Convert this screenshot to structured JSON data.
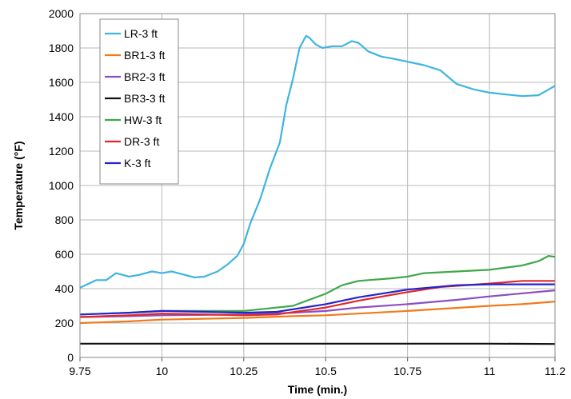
{
  "chart_data": {
    "type": "line",
    "title": "",
    "xlabel": "Time (min.)",
    "ylabel": "Temperature (°F)",
    "xlim": [
      9.75,
      11.2
    ],
    "ylim": [
      0,
      2000
    ],
    "xticks": [
      9.75,
      10,
      10.25,
      10.5,
      10.75,
      11,
      11.2
    ],
    "xtick_labels": [
      "9.75",
      "10",
      "10.25",
      "10.5",
      "10.75",
      "11",
      "11.2"
    ],
    "yticks": [
      0,
      200,
      400,
      600,
      800,
      1000,
      1200,
      1400,
      1600,
      1800,
      2000
    ],
    "ytick_labels": [
      "0",
      "200",
      "400",
      "600",
      "800",
      "1000",
      "1200",
      "1400",
      "1600",
      "1800",
      "2000"
    ],
    "grid": true,
    "legend_position": "top-left",
    "series": [
      {
        "name": "LR-3 ft",
        "color": "#3fb5e0",
        "x": [
          9.75,
          9.8,
          9.83,
          9.86,
          9.9,
          9.93,
          9.97,
          10.0,
          10.03,
          10.07,
          10.1,
          10.13,
          10.17,
          10.2,
          10.23,
          10.25,
          10.27,
          10.3,
          10.33,
          10.36,
          10.38,
          10.4,
          10.42,
          10.44,
          10.45,
          10.47,
          10.49,
          10.52,
          10.55,
          10.58,
          10.6,
          10.63,
          10.67,
          10.7,
          10.75,
          10.8,
          10.85,
          10.9,
          10.95,
          11.0,
          11.05,
          11.1,
          11.15,
          11.2
        ],
        "y": [
          405,
          450,
          450,
          490,
          470,
          480,
          500,
          490,
          500,
          480,
          465,
          470,
          500,
          540,
          590,
          660,
          780,
          920,
          1100,
          1250,
          1470,
          1620,
          1800,
          1870,
          1860,
          1820,
          1800,
          1810,
          1810,
          1840,
          1830,
          1780,
          1750,
          1740,
          1720,
          1700,
          1670,
          1590,
          1560,
          1540,
          1530,
          1520,
          1525,
          1580
        ]
      },
      {
        "name": "BR1-3 ft",
        "color": "#f07a1a",
        "x": [
          9.75,
          9.9,
          10.0,
          10.25,
          10.4,
          10.5,
          10.75,
          11.0,
          11.1,
          11.2
        ],
        "y": [
          200,
          210,
          220,
          230,
          240,
          245,
          270,
          300,
          310,
          325
        ]
      },
      {
        "name": "BR2-3 ft",
        "color": "#8b4fbf",
        "x": [
          9.75,
          9.9,
          10.0,
          10.25,
          10.4,
          10.5,
          10.6,
          10.75,
          10.9,
          11.0,
          11.2
        ],
        "y": [
          235,
          240,
          245,
          250,
          260,
          270,
          290,
          310,
          335,
          355,
          390
        ]
      },
      {
        "name": "BR3-3 ft",
        "color": "#111111",
        "x": [
          9.75,
          10.0,
          10.5,
          11.0,
          11.2
        ],
        "y": [
          80,
          80,
          80,
          80,
          78
        ]
      },
      {
        "name": "HW-3 ft",
        "color": "#3fa84a",
        "x": [
          9.75,
          9.9,
          10.0,
          10.25,
          10.3,
          10.4,
          10.5,
          10.55,
          10.6,
          10.7,
          10.75,
          10.8,
          10.9,
          11.0,
          11.1,
          11.15,
          11.18,
          11.2
        ],
        "y": [
          250,
          260,
          270,
          270,
          280,
          300,
          370,
          420,
          445,
          460,
          470,
          490,
          500,
          510,
          535,
          560,
          590,
          585
        ]
      },
      {
        "name": "DR-3 ft",
        "color": "#e02828",
        "x": [
          9.75,
          9.9,
          10.0,
          10.25,
          10.35,
          10.5,
          10.6,
          10.75,
          10.85,
          11.0,
          11.1,
          11.2
        ],
        "y": [
          235,
          245,
          255,
          245,
          250,
          290,
          330,
          380,
          410,
          430,
          445,
          445
        ]
      },
      {
        "name": "K-3 ft",
        "color": "#2424cc",
        "x": [
          9.75,
          9.9,
          10.0,
          10.25,
          10.35,
          10.5,
          10.6,
          10.75,
          10.9,
          11.0,
          11.2
        ],
        "y": [
          250,
          260,
          270,
          260,
          265,
          310,
          350,
          395,
          420,
          425,
          425
        ]
      }
    ]
  }
}
